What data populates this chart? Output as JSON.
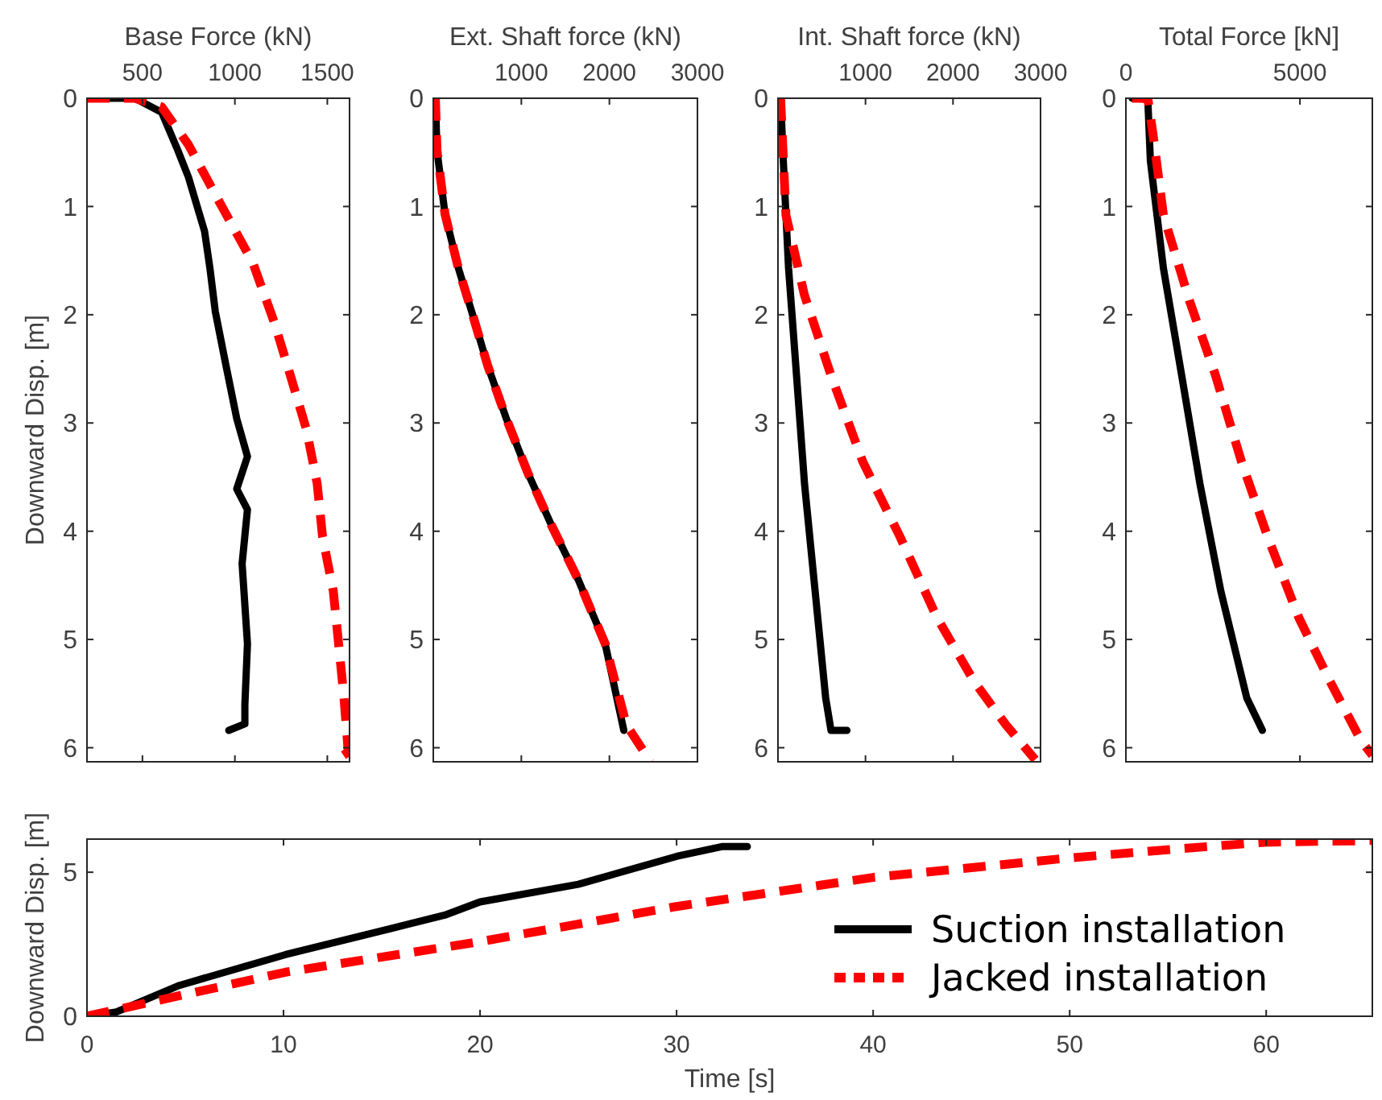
{
  "chart_data": [
    {
      "type": "line",
      "xlabel": "Base Force (kN)",
      "ylabel": "Downward Disp. [m]",
      "xlim": [
        200,
        1620
      ],
      "xticks": [
        500,
        1000,
        1500
      ],
      "ylim": [
        6.13,
        0
      ],
      "yticks": [
        0,
        1,
        2,
        3,
        4,
        5,
        6
      ],
      "series": [
        {
          "color": "#000000",
          "line_style": "solid",
          "x": [
            200,
            459,
            604,
            691,
            749,
            836,
            865,
            894,
            952,
            1010,
            1068,
            1010,
            1068,
            1039,
            1068,
            1054,
            1054,
            967
          ],
          "values": [
            0,
            0,
            0.13,
            0.48,
            0.73,
            1.23,
            1.57,
            1.97,
            2.47,
            2.96,
            3.31,
            3.61,
            3.8,
            4.3,
            5.04,
            5.6,
            5.78,
            5.84
          ]
        },
        {
          "color": "#ff0000",
          "line_style": "dashed",
          "x": [
            200,
            459,
            604,
            749,
            923,
            1097,
            1213,
            1300,
            1387,
            1445,
            1474,
            1532,
            1561,
            1590,
            1613,
            1532
          ],
          "values": [
            0,
            0,
            0.08,
            0.43,
            0.98,
            1.52,
            2.07,
            2.56,
            3.06,
            3.56,
            4.05,
            4.55,
            5.04,
            5.54,
            6.04,
            6.13
          ]
        }
      ]
    },
    {
      "type": "line",
      "xlabel": "Ext. Shaft force (kN)",
      "xlim": [
        0,
        3000
      ],
      "xticks": [
        1000,
        2000,
        3000
      ],
      "ylim": [
        6.13,
        0
      ],
      "yticks": [
        0,
        1,
        2,
        3,
        4,
        5,
        6
      ],
      "series": [
        {
          "color": "#000000",
          "line_style": "solid",
          "x": [
            24,
            42,
            133,
            285,
            436,
            618,
            830,
            1073,
            1345,
            1648,
            1952,
            2164
          ],
          "values": [
            0,
            0.48,
            1.07,
            1.57,
            1.97,
            2.47,
            2.96,
            3.46,
            3.95,
            4.45,
            5.04,
            5.84
          ]
        },
        {
          "color": "#ff0000",
          "line_style": "dashed",
          "x": [
            24,
            42,
            133,
            285,
            436,
            618,
            830,
            1073,
            1345,
            1648,
            1952,
            2194,
            2467
          ],
          "values": [
            0,
            0.48,
            1.07,
            1.57,
            1.97,
            2.47,
            2.96,
            3.46,
            3.95,
            4.45,
            5.04,
            5.79,
            6.13
          ]
        }
      ]
    },
    {
      "type": "line",
      "xlabel": "Int. Shaft force (kN)",
      "xlim": [
        0,
        3000
      ],
      "xticks": [
        1000,
        2000,
        3000
      ],
      "ylim": [
        6.13,
        0
      ],
      "yticks": [
        0,
        1,
        2,
        3,
        4,
        5,
        6
      ],
      "series": [
        {
          "color": "#000000",
          "line_style": "solid",
          "x": [
            30,
            61,
            121,
            212,
            303,
            424,
            545,
            606,
            788
          ],
          "values": [
            0,
            0.58,
            1.57,
            2.56,
            3.56,
            4.55,
            5.54,
            5.84,
            5.84
          ]
        },
        {
          "color": "#ff0000",
          "line_style": "dashed",
          "x": [
            30,
            91,
            303,
            606,
            970,
            1394,
            1818,
            2242,
            2606,
            2939
          ],
          "values": [
            0,
            1.08,
            1.82,
            2.56,
            3.36,
            4.05,
            4.8,
            5.39,
            5.79,
            6.11
          ]
        }
      ]
    },
    {
      "type": "line",
      "xlabel": "Total Force [kN]",
      "xlim": [
        0,
        7080
      ],
      "xticks": [
        0,
        5000
      ],
      "ylim": [
        6.13,
        0
      ],
      "yticks": [
        0,
        1,
        2,
        3,
        4,
        5,
        6
      ],
      "series": [
        {
          "color": "#000000",
          "line_style": "solid",
          "x": [
            180,
            629,
            704,
            1078,
            1602,
            2126,
            2725,
            3473,
            3922
          ],
          "values": [
            0,
            0.01,
            0.58,
            1.57,
            2.56,
            3.56,
            4.55,
            5.54,
            5.84
          ]
        },
        {
          "color": "#ff0000",
          "line_style": "dashed",
          "x": [
            180,
            629,
            778,
            1078,
            1826,
            2575,
            3323,
            4072,
            4970,
            5868,
            6766,
            7080
          ],
          "values": [
            0,
            0,
            0.33,
            1.08,
            1.87,
            2.56,
            3.36,
            4.05,
            4.8,
            5.39,
            5.94,
            6.07
          ]
        }
      ]
    },
    {
      "type": "line",
      "xlabel": "Time [s]",
      "ylabel": "Downward Disp. [m]",
      "xlim": [
        0,
        65.4
      ],
      "xticks": [
        0,
        10,
        20,
        30,
        40,
        50,
        60
      ],
      "ylim": [
        0,
        6.15
      ],
      "yticks": [
        0,
        5
      ],
      "legend": "bottom right",
      "series": [
        {
          "name": "Suction installation",
          "color": "#000000",
          "line_style": "solid",
          "x": [
            0,
            1.5,
            4.7,
            10.1,
            15.5,
            18.2,
            20,
            25,
            30,
            32.3,
            33.6
          ],
          "values": [
            0,
            0.15,
            1.07,
            2.14,
            3.05,
            3.51,
            3.97,
            4.58,
            5.55,
            5.89,
            5.89
          ]
        },
        {
          "name": "Jacked installation",
          "color": "#ff0000",
          "line_style": "dashed",
          "x": [
            0,
            10.1,
            20,
            30,
            40,
            49.9,
            55.3,
            59.9,
            65.4
          ],
          "values": [
            0,
            1.53,
            2.59,
            3.81,
            4.82,
            5.49,
            5.8,
            6.04,
            6.1
          ]
        }
      ]
    }
  ]
}
